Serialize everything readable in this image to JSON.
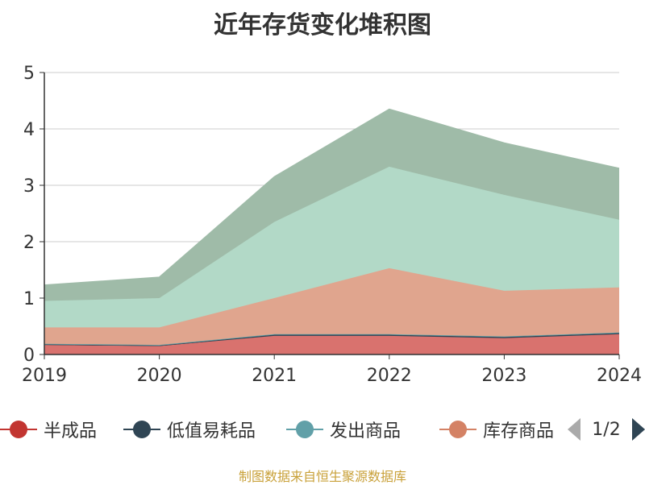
{
  "title": "近年存货变化堆积图",
  "source_text": "制图数据来自恒生聚源数据库",
  "legend": {
    "page_text": "1/2"
  },
  "chart_data": {
    "type": "area",
    "stacked": true,
    "title": "近年存货变化堆积图",
    "xlabel": "",
    "ylabel": "",
    "x": [
      "2019",
      "2020",
      "2021",
      "2022",
      "2023",
      "2024"
    ],
    "ylim": [
      0,
      5
    ],
    "yticks": [
      "0",
      "1",
      "2",
      "3",
      "4",
      "5"
    ],
    "grid": true,
    "legend_position": "bottom",
    "series": [
      {
        "name": "半成品",
        "values": [
          0.17,
          0.15,
          0.33,
          0.33,
          0.29,
          0.36
        ],
        "color": "#d9726e",
        "legend_color": "#c23531"
      },
      {
        "name": "低值易耗品",
        "values": [
          0.01,
          0.01,
          0.02,
          0.02,
          0.02,
          0.02
        ],
        "color": "#2f4554",
        "legend_color": "#2f4554"
      },
      {
        "name": "发出商品",
        "values": [
          0.01,
          0.01,
          0.01,
          0.01,
          0.01,
          0.01
        ],
        "color": "#61a0a8",
        "legend_color": "#61a0a8"
      },
      {
        "name": "库存商品",
        "values": [
          0.29,
          0.31,
          0.64,
          1.17,
          0.81,
          0.8
        ],
        "color": "#e0a58e",
        "legend_color": "#d48265"
      },
      {
        "name": "",
        "values": [
          0.47,
          0.52,
          1.35,
          1.8,
          1.7,
          1.2
        ],
        "color": "#b2d9c7",
        "legend_color": "#91c7ae"
      },
      {
        "name": "",
        "values": [
          0.28,
          0.37,
          0.8,
          1.02,
          0.92,
          0.91
        ],
        "color": "#9fbba8",
        "legend_color": "#749f83"
      }
    ]
  }
}
